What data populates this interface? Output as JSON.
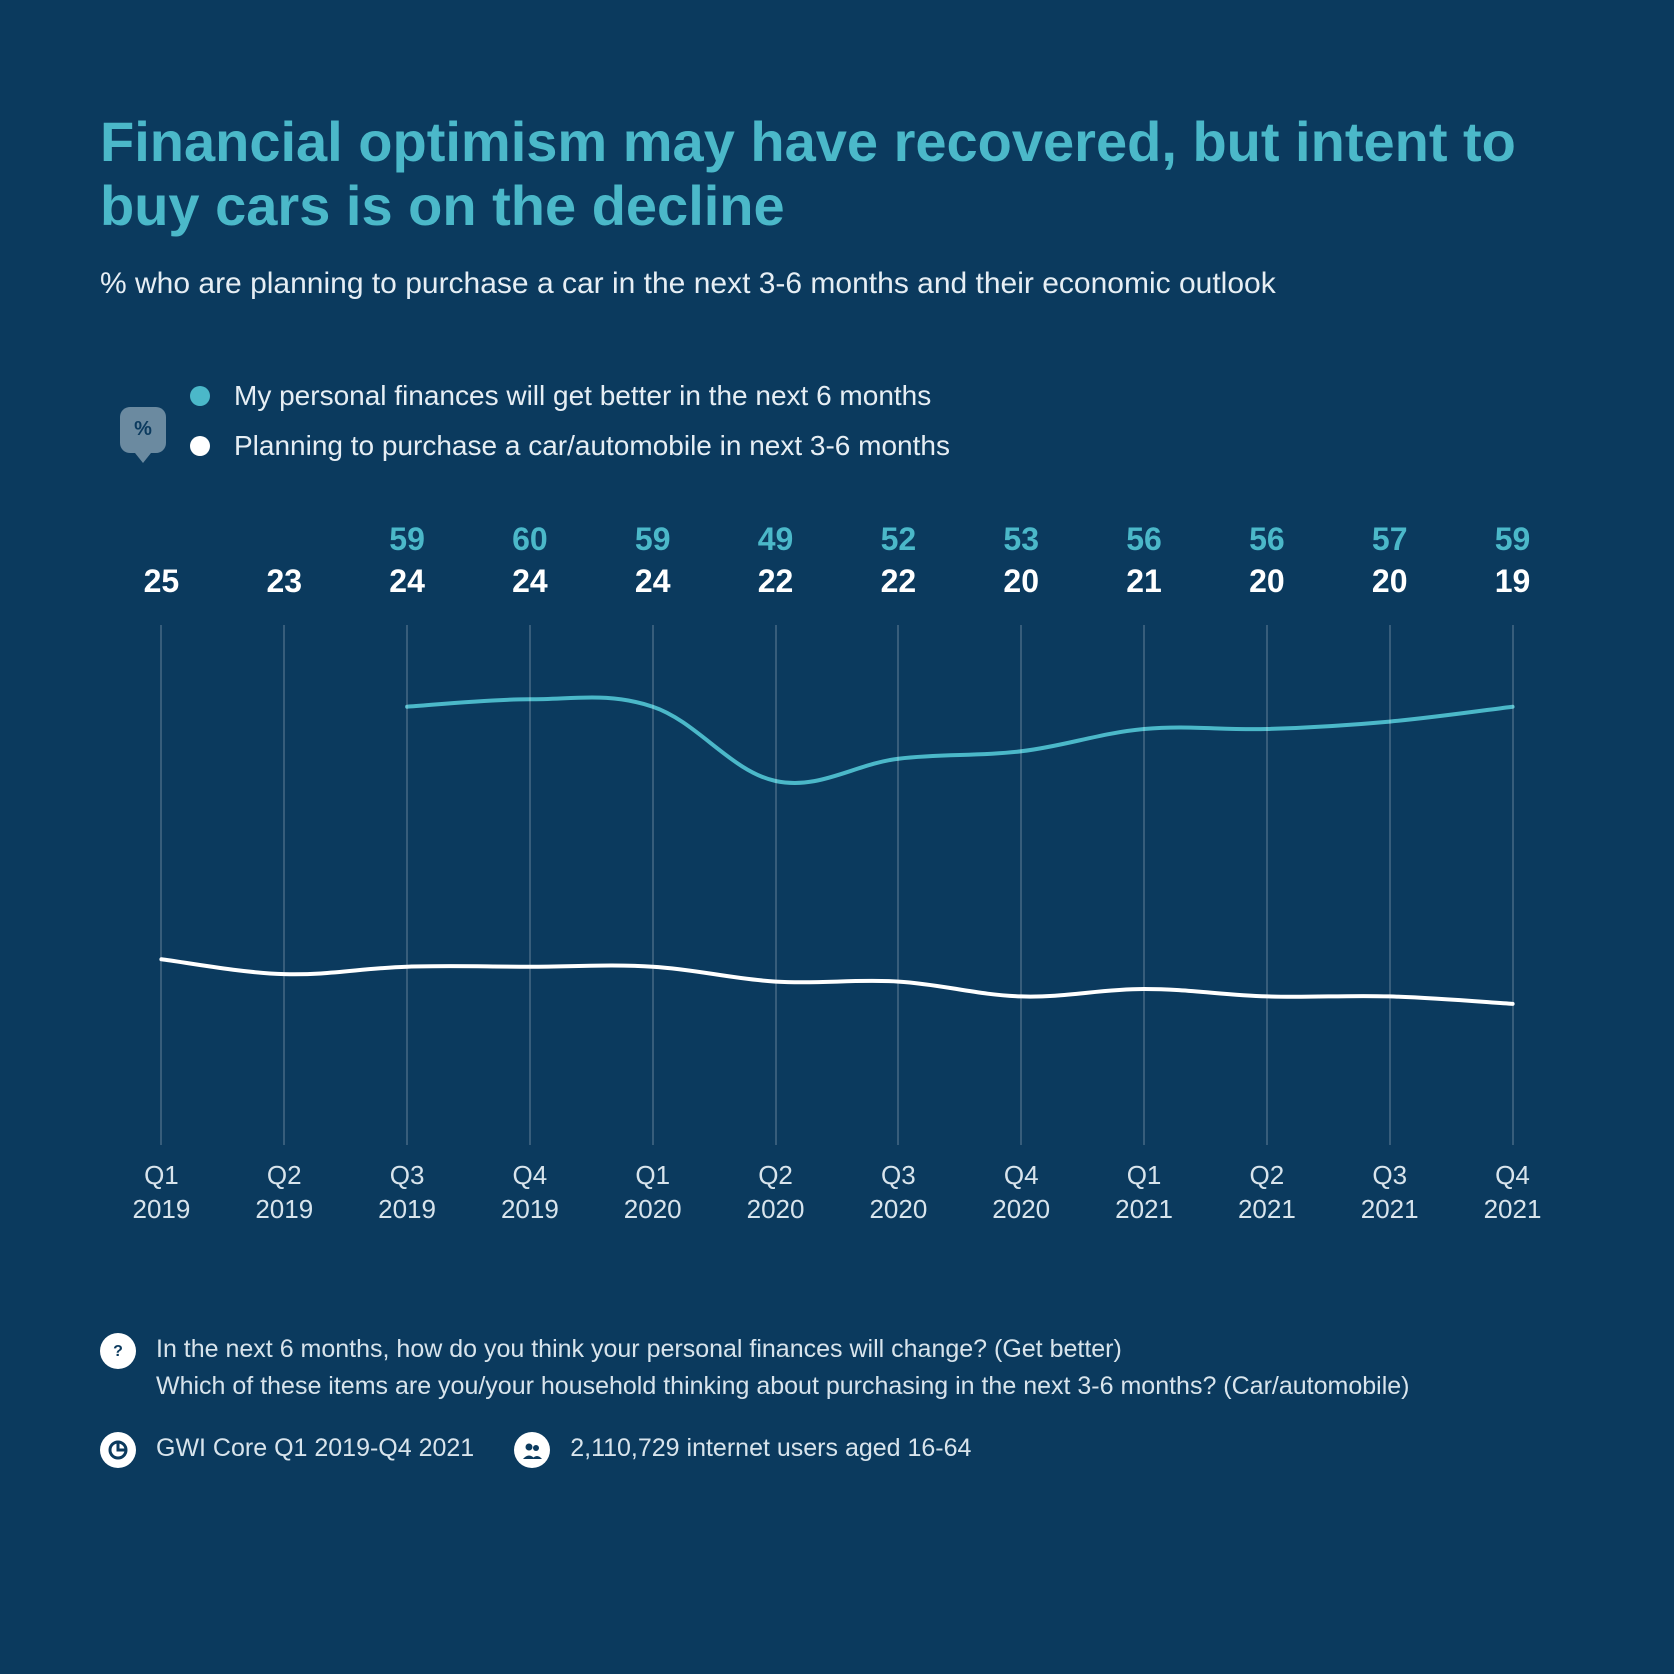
{
  "title": "Financial optimism may have recovered, but intent to buy cars is on the decline",
  "subtitle": "% who are planning to purchase a car in the next 3-6 months and their economic outlook",
  "percent_badge": "%",
  "legend": {
    "series1": "My personal finances will get better in the next 6 months",
    "series2": "Planning to purchase a car/automobile in next 3-6 months"
  },
  "colors": {
    "background": "#0b3a5e",
    "title": "#4bb8c9",
    "text": "#e6eef4",
    "series1": "#4bb8c9",
    "series2": "#ffffff",
    "grid": "rgba(255,255,255,0.18)"
  },
  "chart": {
    "type": "line",
    "x_labels": [
      {
        "q": "Q1",
        "y": "2019"
      },
      {
        "q": "Q2",
        "y": "2019"
      },
      {
        "q": "Q3",
        "y": "2019"
      },
      {
        "q": "Q4",
        "y": "2019"
      },
      {
        "q": "Q1",
        "y": "2020"
      },
      {
        "q": "Q2",
        "y": "2020"
      },
      {
        "q": "Q3",
        "y": "2020"
      },
      {
        "q": "Q4",
        "y": "2020"
      },
      {
        "q": "Q1",
        "y": "2021"
      },
      {
        "q": "Q2",
        "y": "2021"
      },
      {
        "q": "Q3",
        "y": "2021"
      },
      {
        "q": "Q4",
        "y": "2021"
      }
    ],
    "series1_values": [
      null,
      null,
      59,
      60,
      59,
      49,
      52,
      53,
      56,
      56,
      57,
      59
    ],
    "series2_values": [
      25,
      23,
      24,
      24,
      24,
      22,
      22,
      20,
      21,
      20,
      20,
      19
    ],
    "y_min": 0,
    "y_max": 70,
    "line_width": 4,
    "series1_label_color": "#4bb8c9",
    "series2_label_color": "#ffffff",
    "label_fontsize": 32,
    "x_label_fontsize": 26
  },
  "footer": {
    "question_line1": "In the next 6 months, how do you think your personal finances will change? (Get better)",
    "question_line2": "Which of these items are you/your household thinking about purchasing in the next 3-6 months? (Car/automobile)",
    "source": "GWI Core Q1 2019-Q4 2021",
    "sample": "2,110,729 internet users aged 16-64"
  }
}
